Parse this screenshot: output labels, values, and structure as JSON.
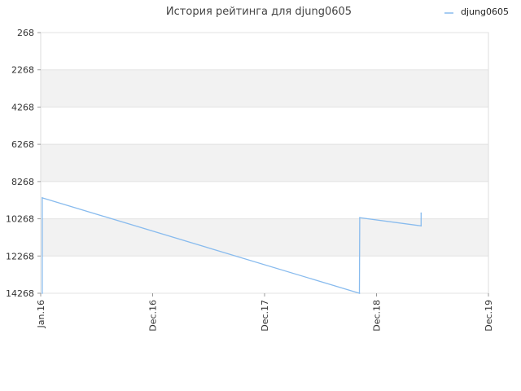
{
  "chart_data": {
    "type": "line",
    "title": "История рейтинга для djung0605",
    "xlabel": "",
    "ylabel": "",
    "x_ticks": [
      "Jan.16",
      "Dec.16",
      "Dec.17",
      "Dec.18",
      "Dec.19"
    ],
    "y_ticks": [
      "268",
      "2268",
      "4268",
      "6268",
      "8268",
      "10268",
      "12268",
      "14268"
    ],
    "ylim": [
      268,
      14268
    ],
    "y_reversed": true,
    "xlim": [
      "2016-01-01",
      "2019-12-01"
    ],
    "grid": true,
    "legend": "top-right",
    "series": [
      {
        "name": "djung0605",
        "color": "#88bbee",
        "points": [
          {
            "x": "2016-01-06",
            "y": 14268
          },
          {
            "x": "2016-01-06",
            "y": 9143
          },
          {
            "x": "2018-10-15",
            "y": 14268
          },
          {
            "x": "2018-10-16",
            "y": 10210
          },
          {
            "x": "2019-04-30",
            "y": 10650
          },
          {
            "x": "2019-04-30",
            "y": 9960
          }
        ]
      }
    ]
  }
}
